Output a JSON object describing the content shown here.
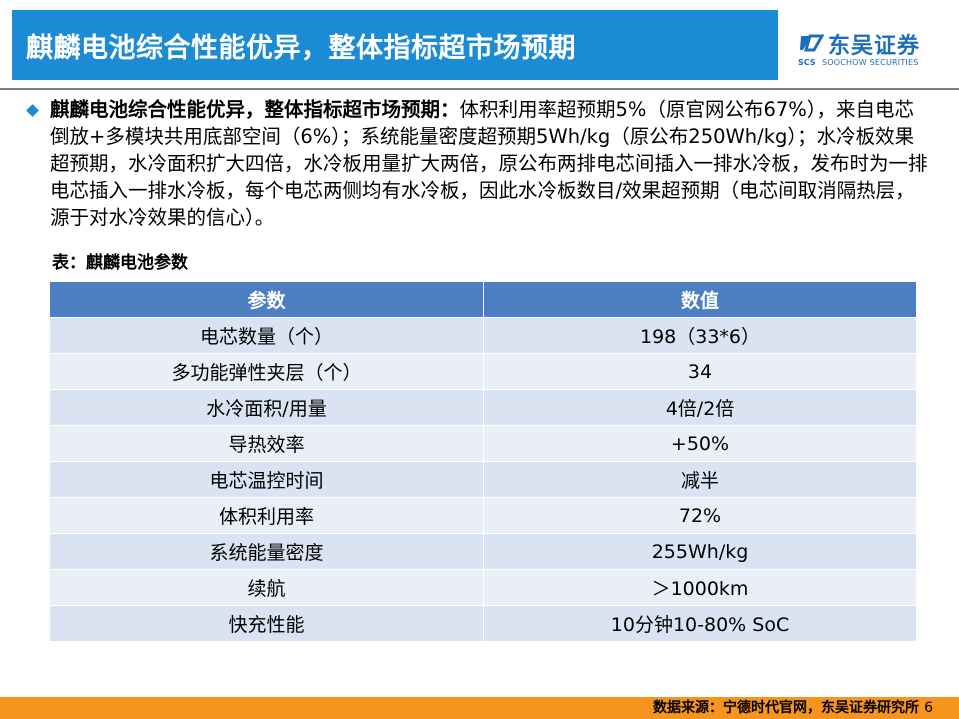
{
  "header": {
    "title": "麒麟电池综合性能优异，整体指标超市场预期"
  },
  "logo": {
    "name_cn": "东吴证券",
    "abbr": "SCS",
    "name_en": "SOOCHOW SECURITIES",
    "brand_color": "#1c6fb8"
  },
  "bullet": {
    "icon": "diamond-bullet-icon",
    "lead": "麒麟电池综合性能优异，整体指标超市场预期：",
    "body": "体积利用率超预期5%（原官网公布67%），来自电芯倒放+多模块共用底部空间（6%）；系统能量密度超预期5Wh/kg（原公布250Wh/kg）；水冷板效果超预期，水冷面积扩大四倍，水冷板用量扩大两倍，原公布两排电芯间插入一排水冷板，发布时为一排电芯插入一排水冷板，每个电芯两侧均有水冷板，因此水冷板数目/效果超预期（电芯间取消隔热层，源于对水冷效果的信心）。"
  },
  "table": {
    "caption": "表：麒麟电池参数",
    "headers": [
      "参数",
      "数值"
    ],
    "rows": [
      [
        "电芯数量（个）",
        "198（33*6）"
      ],
      [
        "多功能弹性夹层（个）",
        "34"
      ],
      [
        "水冷面积/用量",
        "4倍/2倍"
      ],
      [
        "导热效率",
        "+50%"
      ],
      [
        "电芯温控时间",
        "减半"
      ],
      [
        "体积利用率",
        "72%"
      ],
      [
        "系统能量密度",
        "255Wh/kg"
      ],
      [
        "续航",
        "＞1000km"
      ],
      [
        "快充性能",
        "10分钟10-80% SoC"
      ]
    ],
    "header_color": "#4c7ec2",
    "row_color": "#d9e3f2"
  },
  "footer": {
    "source": "数据来源：宁德时代官网，东吴证券研究所",
    "page": "6",
    "bar_color": "#f7941d"
  },
  "title_bar_color": "#1c8bd6"
}
